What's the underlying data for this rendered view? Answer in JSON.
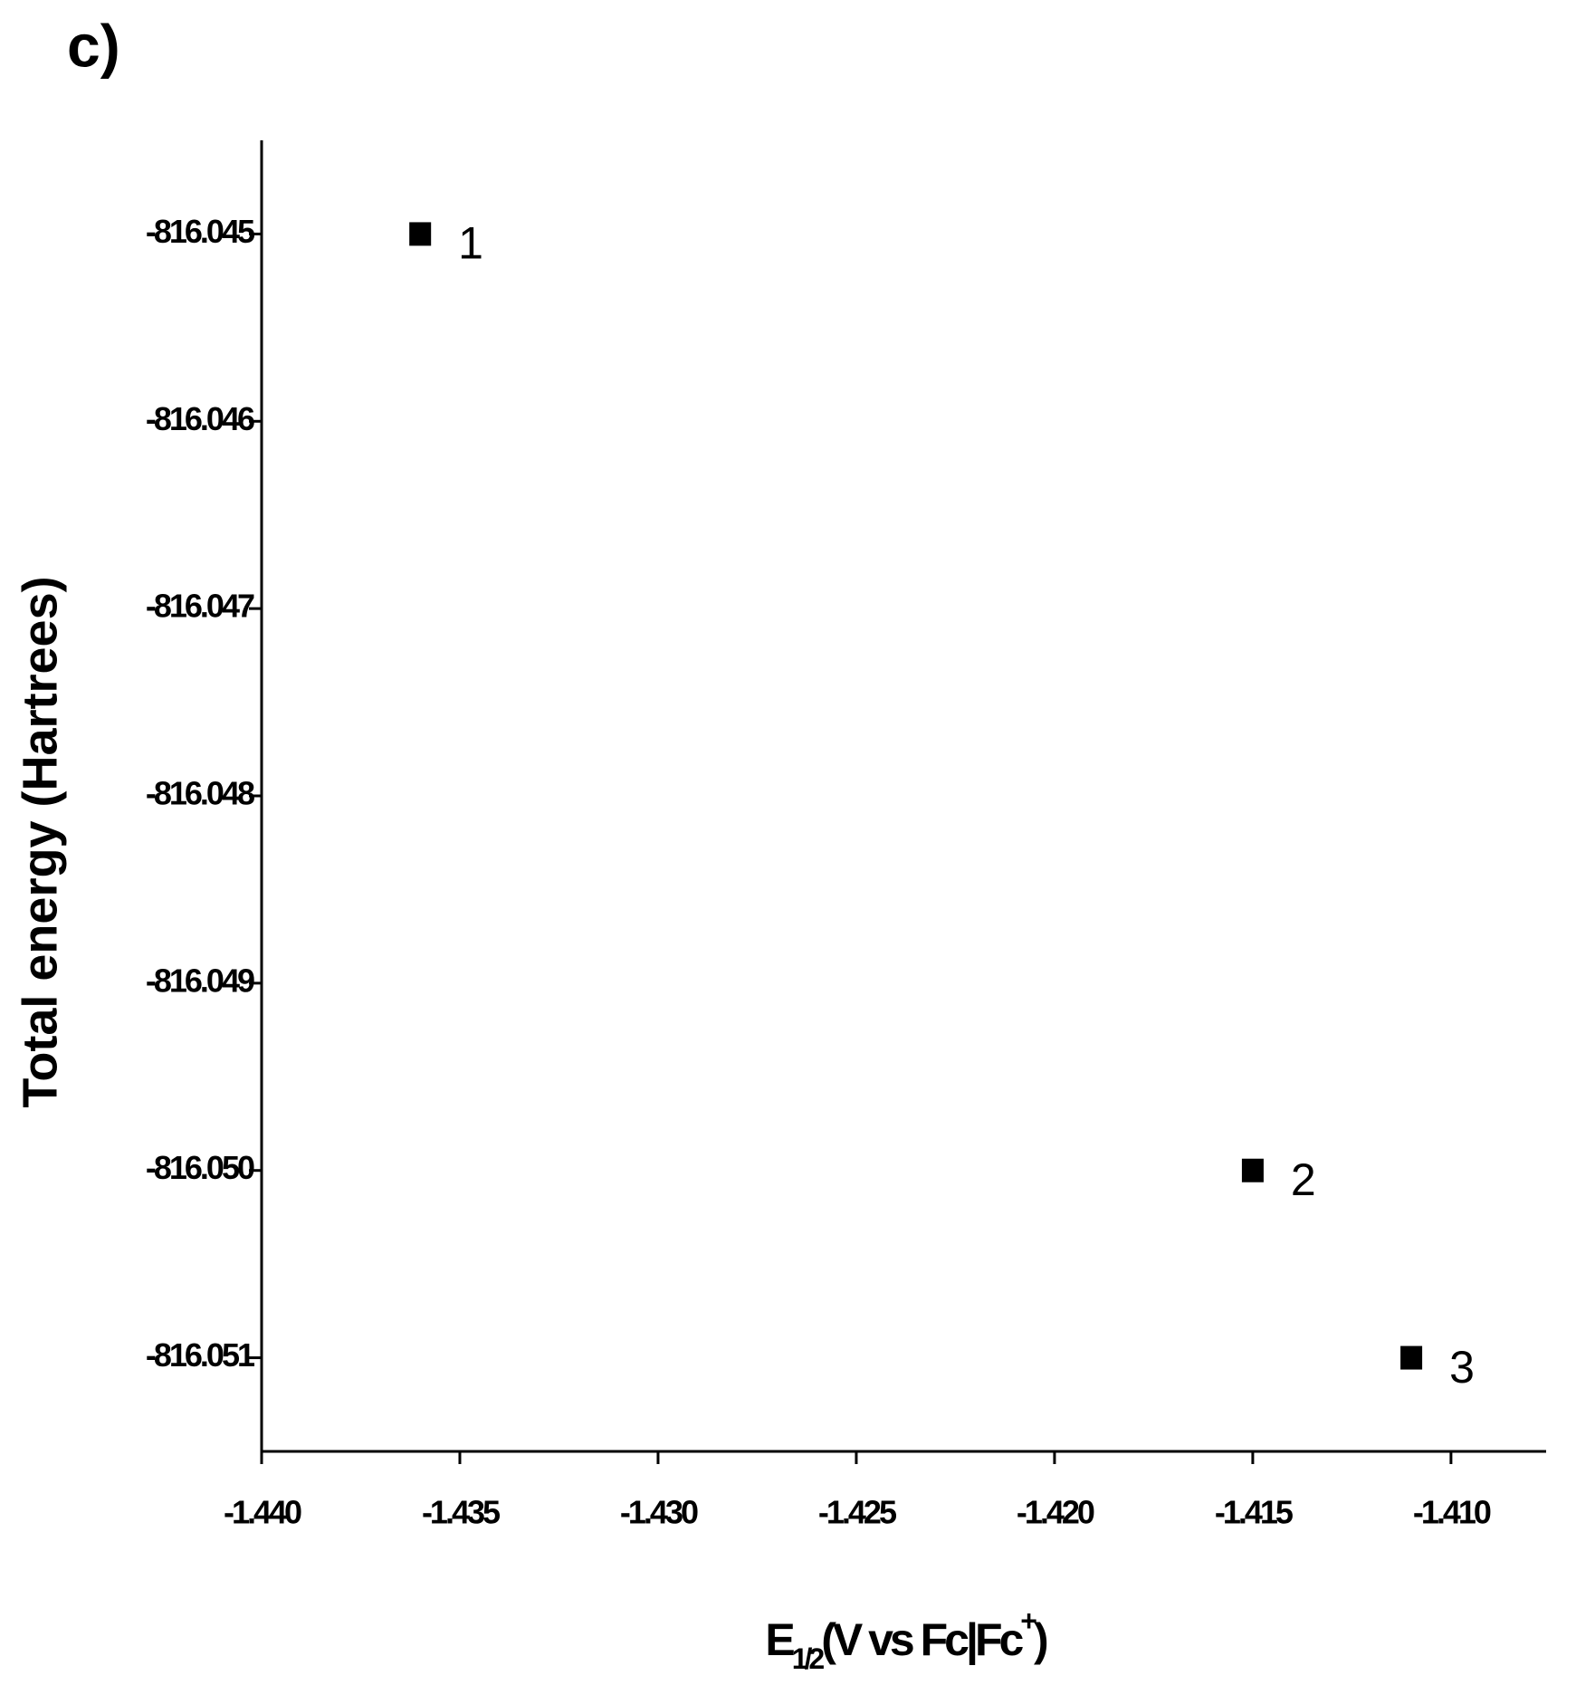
{
  "chart_data": {
    "type": "scatter",
    "panel_label": "c)",
    "xlabel": {
      "main": "E",
      "sub": "1/2",
      "rest": "(V vs Fc|Fc",
      "sup": "+",
      "end": ")"
    },
    "ylabel": "Total energy (Hartrees)",
    "x": [
      -1.436,
      -1.415,
      -1.411
    ],
    "values": [
      -816.045,
      -816.05,
      -816.051
    ],
    "point_labels": [
      "1",
      "2",
      "3"
    ],
    "color": "#000000",
    "xlim": [
      -1.44,
      -1.4076
    ],
    "ylim": [
      -816.0515,
      -816.0445
    ],
    "xticks": [
      {
        "value": -1.44,
        "label": "-1.440"
      },
      -1.435,
      {
        "value": -1.43,
        "label": "-1.430"
      },
      -1.425,
      {
        "value": -1.42,
        "label": "-1.420"
      },
      -1.415,
      {
        "value": -1.41,
        "label": "-1.410"
      }
    ],
    "yticks": [
      -816.045,
      -816.046,
      -816.047,
      -816.048,
      -816.049,
      {
        "value": -816.05,
        "label": "-816.050"
      },
      -816.051
    ]
  }
}
